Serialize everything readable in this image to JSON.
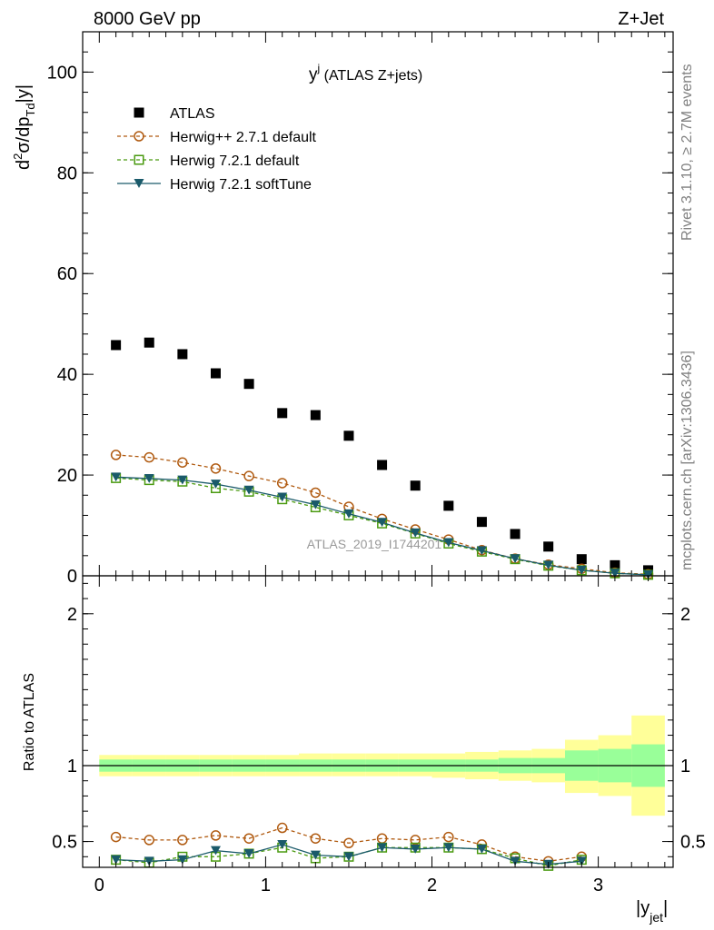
{
  "header": {
    "left": "8000 GeV pp",
    "right": "Z+Jet"
  },
  "side_labels": {
    "rivet": "Rivet 3.1.10, ≥ 2.7M events",
    "mcplots": "mcplots.cern.ch [arXiv:1306.3436]"
  },
  "watermark": "ATLAS_2019_I1744201",
  "chart_data": [
    {
      "type": "scatter",
      "title": "y^j (ATLAS Z+jets)",
      "title_main": "y",
      "title_sup": "j",
      "title_rest": " (ATLAS Z+jets)",
      "ylabel": "d²σ/dp_Td|y|",
      "xlabel": "|y_jet|",
      "xlim": [
        -0.1,
        3.45
      ],
      "ylim": [
        0,
        108
      ],
      "x_ticks": [
        0,
        1,
        2,
        3
      ],
      "y_ticks": [
        0,
        20,
        40,
        60,
        80,
        100
      ],
      "legend_position": "top-left",
      "x": [
        0.1,
        0.3,
        0.5,
        0.7,
        0.9,
        1.1,
        1.3,
        1.5,
        1.7,
        1.9,
        2.1,
        2.3,
        2.5,
        2.7,
        2.9,
        3.1,
        3.3
      ],
      "series": [
        {
          "name": "ATLAS",
          "color": "#000000",
          "marker": "filled-square",
          "values": [
            45.8,
            46.3,
            44.0,
            40.2,
            38.1,
            32.3,
            31.9,
            27.8,
            22.0,
            17.9,
            13.9,
            10.7,
            8.3,
            5.8,
            3.3,
            2.1,
            1.1
          ]
        },
        {
          "name": "Herwig++ 2.7.1 default",
          "color": "#b05a10",
          "marker": "open-circle",
          "dash": "dashed",
          "values": [
            24.0,
            23.5,
            22.5,
            21.3,
            19.8,
            18.4,
            16.5,
            13.7,
            11.3,
            9.2,
            7.2,
            5.1,
            3.4,
            2.2,
            1.4,
            0.6,
            0.3
          ]
        },
        {
          "name": "Herwig 7.2.1 default",
          "color": "#4a9a10",
          "marker": "open-square",
          "dash": "dashed",
          "values": [
            19.4,
            19.0,
            18.7,
            17.4,
            16.7,
            15.2,
            13.6,
            12.0,
            10.4,
            8.4,
            6.4,
            4.8,
            3.3,
            2.0,
            1.1,
            0.5,
            0.2
          ]
        },
        {
          "name": "Herwig 7.2.1 softTune",
          "color": "#1a5a6a",
          "marker": "filled-triangle-down",
          "dash": "solid",
          "values": [
            19.6,
            19.3,
            19.0,
            18.2,
            17.0,
            15.6,
            14.1,
            12.3,
            10.6,
            8.5,
            6.6,
            5.0,
            3.4,
            2.1,
            1.1,
            0.5,
            0.2
          ]
        }
      ]
    },
    {
      "type": "scatter",
      "title": "",
      "ylabel": "Ratio to ATLAS",
      "xlabel": "|y_jet|",
      "xlim": [
        -0.1,
        3.45
      ],
      "ylim": [
        0.33,
        2.25
      ],
      "x_ticks": [
        0,
        1,
        2,
        3
      ],
      "y_ticks": [
        0.5,
        1,
        2
      ],
      "bands": {
        "edges": [
          0.0,
          0.2,
          0.4,
          0.6,
          0.8,
          1.0,
          1.2,
          1.4,
          1.6,
          1.8,
          2.0,
          2.2,
          2.4,
          2.6,
          2.8,
          3.0,
          3.2,
          3.4
        ],
        "outer": {
          "color": "#ffff99",
          "low": [
            0.93,
            0.93,
            0.93,
            0.93,
            0.93,
            0.93,
            0.93,
            0.93,
            0.93,
            0.93,
            0.92,
            0.91,
            0.9,
            0.89,
            0.82,
            0.8,
            0.67
          ],
          "high": [
            1.07,
            1.07,
            1.07,
            1.07,
            1.07,
            1.07,
            1.08,
            1.08,
            1.08,
            1.08,
            1.08,
            1.09,
            1.1,
            1.11,
            1.17,
            1.2,
            1.33
          ]
        },
        "inner": {
          "color": "#99ff99",
          "low": [
            0.96,
            0.96,
            0.96,
            0.96,
            0.96,
            0.96,
            0.96,
            0.96,
            0.96,
            0.96,
            0.96,
            0.96,
            0.95,
            0.95,
            0.9,
            0.89,
            0.86
          ],
          "high": [
            1.04,
            1.04,
            1.04,
            1.04,
            1.04,
            1.04,
            1.04,
            1.04,
            1.04,
            1.04,
            1.04,
            1.04,
            1.05,
            1.05,
            1.1,
            1.11,
            1.14
          ]
        }
      },
      "x": [
        0.1,
        0.3,
        0.5,
        0.7,
        0.9,
        1.1,
        1.3,
        1.5,
        1.7,
        1.9,
        2.1,
        2.3,
        2.5,
        2.7,
        2.9
      ],
      "series": [
        {
          "name": "Herwig++ 2.7.1 default",
          "color": "#b05a10",
          "marker": "open-circle",
          "dash": "dashed",
          "values": [
            0.53,
            0.51,
            0.51,
            0.54,
            0.52,
            0.59,
            0.52,
            0.49,
            0.52,
            0.51,
            0.53,
            0.48,
            0.4,
            0.37,
            0.4
          ]
        },
        {
          "name": "Herwig 7.2.1 default",
          "color": "#4a9a10",
          "marker": "open-square",
          "dash": "dashed",
          "values": [
            0.38,
            0.36,
            0.4,
            0.4,
            0.42,
            0.46,
            0.39,
            0.4,
            0.46,
            0.46,
            0.46,
            0.45,
            0.39,
            0.34,
            0.38
          ]
        },
        {
          "name": "Herwig 7.2.1 softTune",
          "color": "#1a5a6a",
          "marker": "filled-triangle-down",
          "dash": "solid",
          "values": [
            0.38,
            0.37,
            0.38,
            0.44,
            0.42,
            0.48,
            0.41,
            0.4,
            0.46,
            0.45,
            0.46,
            0.45,
            0.37,
            0.35,
            0.37
          ]
        }
      ]
    }
  ]
}
